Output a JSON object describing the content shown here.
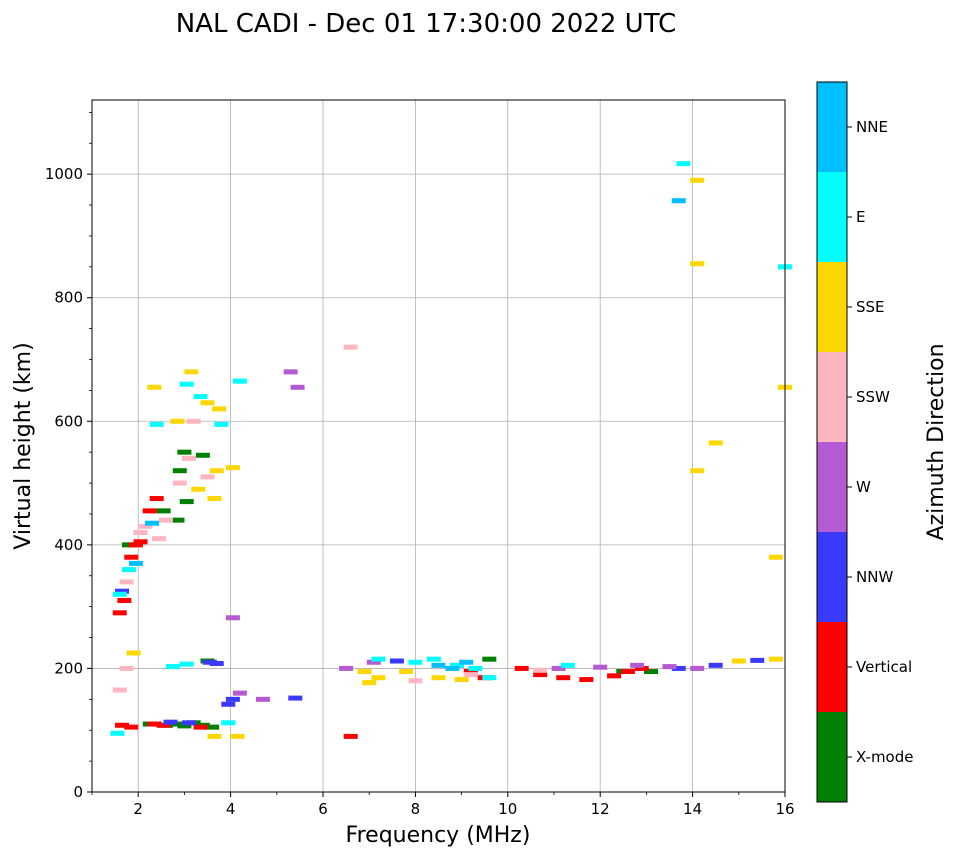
{
  "chart_data": {
    "type": "scatter",
    "title": "NAL CADI - Dec 01 17:30:00 2022 UTC",
    "xlabel": "Frequency (MHz)",
    "ylabel": "Virtual height (km)",
    "xlim": [
      1,
      16
    ],
    "ylim": [
      0,
      1120
    ],
    "xticks": [
      2,
      4,
      6,
      8,
      10,
      12,
      14,
      16
    ],
    "yticks": [
      0,
      200,
      400,
      600,
      800,
      1000
    ],
    "grid": true,
    "colorbar": {
      "label": "Azimuth Direction",
      "categories": [
        "X-mode",
        "Vertical",
        "NNW",
        "W",
        "SSW",
        "SSE",
        "E",
        "NNE"
      ],
      "colors": [
        "#008000",
        "#ff0000",
        "#3a3aff",
        "#b45ad2",
        "#ffb6c1",
        "#ffd700",
        "#00ffff",
        "#00bfff"
      ]
    },
    "series": [
      {
        "name": "X-mode",
        "points": [
          [
            2.25,
            110
          ],
          [
            2.6,
            108
          ],
          [
            2.8,
            110
          ],
          [
            3.0,
            107
          ],
          [
            3.2,
            112
          ],
          [
            3.4,
            108
          ],
          [
            3.6,
            105
          ],
          [
            2.9,
            520
          ],
          [
            3.0,
            550
          ],
          [
            2.85,
            440
          ],
          [
            3.05,
            470
          ],
          [
            3.4,
            545
          ],
          [
            3.5,
            212
          ],
          [
            2.55,
            455
          ],
          [
            9.6,
            215
          ],
          [
            12.5,
            195
          ],
          [
            13.1,
            195
          ],
          [
            1.8,
            400
          ]
        ]
      },
      {
        "name": "Vertical",
        "points": [
          [
            1.6,
            290
          ],
          [
            1.7,
            310
          ],
          [
            1.85,
            380
          ],
          [
            1.95,
            400
          ],
          [
            2.05,
            405
          ],
          [
            2.25,
            455
          ],
          [
            2.4,
            475
          ],
          [
            1.65,
            108
          ],
          [
            1.85,
            105
          ],
          [
            2.35,
            110
          ],
          [
            2.55,
            108
          ],
          [
            3.35,
            105
          ],
          [
            6.6,
            90
          ],
          [
            10.3,
            200
          ],
          [
            10.7,
            190
          ],
          [
            11.2,
            185
          ],
          [
            11.7,
            182
          ],
          [
            12.3,
            188
          ],
          [
            12.6,
            195
          ],
          [
            12.9,
            200
          ],
          [
            9.5,
            185
          ],
          [
            9.2,
            195
          ]
        ]
      },
      {
        "name": "NNW",
        "points": [
          [
            3.7,
            208
          ],
          [
            3.55,
            210
          ],
          [
            3.95,
            142
          ],
          [
            4.05,
            150
          ],
          [
            5.4,
            152
          ],
          [
            1.65,
            325
          ],
          [
            7.6,
            212
          ],
          [
            13.7,
            200
          ],
          [
            14.5,
            205
          ],
          [
            15.4,
            213
          ],
          [
            2.7,
            113
          ],
          [
            3.1,
            112
          ]
        ]
      },
      {
        "name": "W",
        "points": [
          [
            4.05,
            282
          ],
          [
            4.2,
            160
          ],
          [
            4.7,
            150
          ],
          [
            5.3,
            680
          ],
          [
            5.45,
            655
          ],
          [
            6.5,
            200
          ],
          [
            7.1,
            210
          ],
          [
            8.9,
            205
          ],
          [
            11.1,
            200
          ],
          [
            12.0,
            202
          ],
          [
            12.8,
            205
          ],
          [
            13.5,
            203
          ],
          [
            14.1,
            200
          ]
        ]
      },
      {
        "name": "SSW",
        "points": [
          [
            1.75,
            340
          ],
          [
            2.05,
            420
          ],
          [
            2.15,
            430
          ],
          [
            2.45,
            410
          ],
          [
            2.6,
            440
          ],
          [
            2.9,
            500
          ],
          [
            3.1,
            540
          ],
          [
            3.2,
            600
          ],
          [
            3.5,
            510
          ],
          [
            6.6,
            720
          ],
          [
            1.6,
            165
          ],
          [
            1.75,
            200
          ],
          [
            8.0,
            180
          ],
          [
            9.2,
            190
          ],
          [
            10.7,
            197
          ]
        ]
      },
      {
        "name": "SSE",
        "points": [
          [
            2.35,
            655
          ],
          [
            3.15,
            680
          ],
          [
            3.5,
            630
          ],
          [
            3.75,
            620
          ],
          [
            3.7,
            520
          ],
          [
            3.65,
            475
          ],
          [
            4.05,
            525
          ],
          [
            3.3,
            490
          ],
          [
            2.85,
            600
          ],
          [
            4.15,
            90
          ],
          [
            3.65,
            90
          ],
          [
            1.9,
            225
          ],
          [
            6.9,
            195
          ],
          [
            7.2,
            185
          ],
          [
            7.8,
            195
          ],
          [
            8.5,
            185
          ],
          [
            9.0,
            182
          ],
          [
            14.1,
            990
          ],
          [
            14.1,
            855
          ],
          [
            14.5,
            565
          ],
          [
            14.1,
            520
          ],
          [
            15.8,
            380
          ],
          [
            16.0,
            655
          ],
          [
            15.0,
            212
          ],
          [
            15.8,
            215
          ],
          [
            7.0,
            177
          ]
        ]
      },
      {
        "name": "E",
        "points": [
          [
            1.6,
            320
          ],
          [
            1.8,
            360
          ],
          [
            2.4,
            595
          ],
          [
            3.05,
            660
          ],
          [
            3.35,
            640
          ],
          [
            3.8,
            595
          ],
          [
            4.2,
            665
          ],
          [
            2.75,
            203
          ],
          [
            3.05,
            207
          ],
          [
            1.55,
            95
          ],
          [
            7.2,
            215
          ],
          [
            8.0,
            210
          ],
          [
            8.4,
            215
          ],
          [
            8.9,
            205
          ],
          [
            9.3,
            200
          ],
          [
            9.6,
            185
          ],
          [
            11.3,
            205
          ],
          [
            13.8,
            1017
          ],
          [
            16.0,
            850
          ],
          [
            3.95,
            112
          ]
        ]
      },
      {
        "name": "NNE",
        "points": [
          [
            13.7,
            957
          ],
          [
            1.95,
            370
          ],
          [
            2.3,
            435
          ],
          [
            8.5,
            205
          ],
          [
            8.8,
            200
          ],
          [
            9.1,
            210
          ]
        ]
      }
    ]
  }
}
